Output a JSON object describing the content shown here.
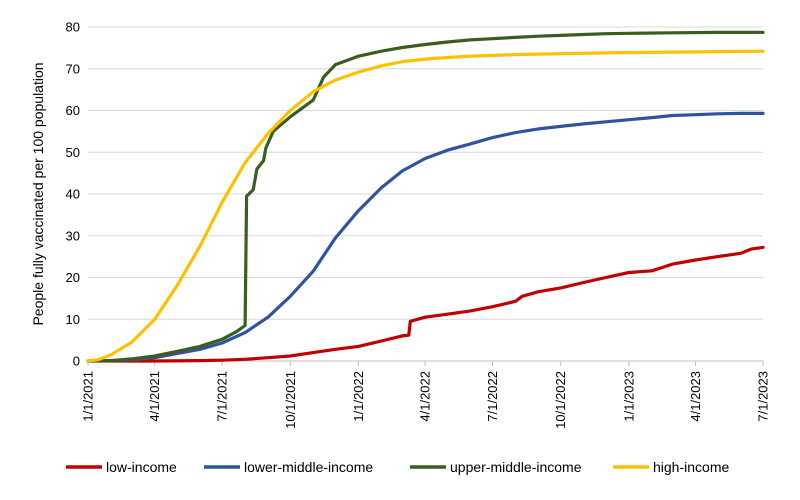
{
  "chart_data": {
    "type": "line",
    "title": "",
    "xlabel": "",
    "ylabel": "People fully vaccinated per 100 population",
    "ylim": [
      0,
      80
    ],
    "y_ticks": [
      "0",
      "10",
      "20",
      "30",
      "40",
      "50",
      "60",
      "70",
      "80"
    ],
    "y_tick_values": [
      0,
      10,
      20,
      30,
      40,
      50,
      60,
      70,
      80
    ],
    "x_ticks": [
      "1/1/2021",
      "4/1/2021",
      "7/1/2021",
      "10/1/2021",
      "1/1/2022",
      "4/1/2022",
      "7/1/2022",
      "10/1/2022",
      "1/1/2023",
      "4/1/2023",
      "7/1/2023"
    ],
    "x_range": [
      "1/1/2021",
      "7/1/2023"
    ],
    "grid": "horizontal",
    "legend_position": "bottom",
    "series": [
      {
        "name": "low-income",
        "color": "#c00000",
        "points": [
          [
            "1/1/2021",
            0
          ],
          [
            "4/1/2021",
            0
          ],
          [
            "6/1/2021",
            0.1
          ],
          [
            "7/1/2021",
            0.2
          ],
          [
            "8/1/2021",
            0.4
          ],
          [
            "9/1/2021",
            0.8
          ],
          [
            "10/1/2021",
            1.2
          ],
          [
            "11/1/2021",
            2
          ],
          [
            "12/1/2021",
            2.8
          ],
          [
            "1/1/2022",
            3.5
          ],
          [
            "2/1/2022",
            4.8
          ],
          [
            "3/1/2022",
            6
          ],
          [
            "3/10/2022",
            6.2
          ],
          [
            "3/12/2022",
            9.5
          ],
          [
            "4/1/2022",
            10.5
          ],
          [
            "5/1/2022",
            11.2
          ],
          [
            "6/1/2022",
            12
          ],
          [
            "7/1/2022",
            13
          ],
          [
            "8/1/2022",
            14.3
          ],
          [
            "8/10/2022",
            15.5
          ],
          [
            "9/1/2022",
            16.6
          ],
          [
            "10/1/2022",
            17.5
          ],
          [
            "11/1/2022",
            18.8
          ],
          [
            "12/1/2022",
            20
          ],
          [
            "1/1/2023",
            21.2
          ],
          [
            "2/1/2023",
            21.6
          ],
          [
            "3/1/2023",
            23.2
          ],
          [
            "4/1/2023",
            24.2
          ],
          [
            "5/1/2023",
            25
          ],
          [
            "6/1/2023",
            25.8
          ],
          [
            "6/15/2023",
            26.8
          ],
          [
            "7/1/2023",
            27.2
          ]
        ]
      },
      {
        "name": "lower-middle-income",
        "color": "#2e54a1",
        "points": [
          [
            "1/1/2021",
            0
          ],
          [
            "2/1/2021",
            0.1
          ],
          [
            "3/1/2021",
            0.3
          ],
          [
            "4/1/2021",
            0.8
          ],
          [
            "5/1/2021",
            1.8
          ],
          [
            "6/1/2021",
            2.8
          ],
          [
            "7/1/2021",
            4.3
          ],
          [
            "8/1/2021",
            6.8
          ],
          [
            "9/1/2021",
            10.5
          ],
          [
            "10/1/2021",
            15.5
          ],
          [
            "11/1/2021",
            21.5
          ],
          [
            "12/1/2021",
            29.5
          ],
          [
            "1/1/2022",
            36
          ],
          [
            "2/1/2022",
            41.5
          ],
          [
            "3/1/2022",
            45.5
          ],
          [
            "4/1/2022",
            48.5
          ],
          [
            "5/1/2022",
            50.5
          ],
          [
            "6/1/2022",
            52
          ],
          [
            "7/1/2022",
            53.5
          ],
          [
            "8/1/2022",
            54.7
          ],
          [
            "9/1/2022",
            55.6
          ],
          [
            "10/1/2022",
            56.2
          ],
          [
            "11/1/2022",
            56.8
          ],
          [
            "12/1/2022",
            57.3
          ],
          [
            "1/1/2023",
            57.8
          ],
          [
            "2/1/2023",
            58.3
          ],
          [
            "3/1/2023",
            58.8
          ],
          [
            "4/1/2023",
            59
          ],
          [
            "5/1/2023",
            59.2
          ],
          [
            "6/1/2023",
            59.3
          ],
          [
            "7/1/2023",
            59.3
          ]
        ]
      },
      {
        "name": "upper-middle-income",
        "color": "#3a5e1f",
        "points": [
          [
            "1/1/2021",
            0
          ],
          [
            "2/1/2021",
            0.1
          ],
          [
            "3/1/2021",
            0.5
          ],
          [
            "4/1/2021",
            1.2
          ],
          [
            "5/1/2021",
            2.3
          ],
          [
            "6/1/2021",
            3.5
          ],
          [
            "7/1/2021",
            5.2
          ],
          [
            "7/20/2021",
            7
          ],
          [
            "8/1/2021",
            8.5
          ],
          [
            "8/3/2021",
            39.5
          ],
          [
            "8/12/2021",
            41
          ],
          [
            "8/17/2021",
            46
          ],
          [
            "8/26/2021",
            48
          ],
          [
            "8/29/2021",
            51
          ],
          [
            "9/8/2021",
            55
          ],
          [
            "10/1/2021",
            58.5
          ],
          [
            "11/1/2021",
            62.5
          ],
          [
            "11/15/2021",
            68
          ],
          [
            "12/1/2021",
            71
          ],
          [
            "1/1/2022",
            73
          ],
          [
            "2/1/2022",
            74.2
          ],
          [
            "3/1/2022",
            75.1
          ],
          [
            "4/1/2022",
            75.8
          ],
          [
            "5/1/2022",
            76.4
          ],
          [
            "6/1/2022",
            76.9
          ],
          [
            "7/1/2022",
            77.2
          ],
          [
            "8/1/2022",
            77.5
          ],
          [
            "9/1/2022",
            77.8
          ],
          [
            "10/1/2022",
            78
          ],
          [
            "11/1/2022",
            78.2
          ],
          [
            "12/1/2022",
            78.4
          ],
          [
            "1/1/2023",
            78.5
          ],
          [
            "3/1/2023",
            78.6
          ],
          [
            "5/1/2023",
            78.7
          ],
          [
            "7/1/2023",
            78.7
          ]
        ]
      },
      {
        "name": "high-income",
        "color": "#ffc000",
        "points": [
          [
            "1/1/2021",
            0
          ],
          [
            "1/15/2021",
            0.3
          ],
          [
            "2/1/2021",
            1.5
          ],
          [
            "3/1/2021",
            4.5
          ],
          [
            "4/1/2021",
            10
          ],
          [
            "5/1/2021",
            18
          ],
          [
            "6/1/2021",
            27.5
          ],
          [
            "7/1/2021",
            38
          ],
          [
            "8/1/2021",
            47.5
          ],
          [
            "9/1/2021",
            54.5
          ],
          [
            "10/1/2021",
            60
          ],
          [
            "11/1/2021",
            64.5
          ],
          [
            "12/1/2021",
            67.3
          ],
          [
            "1/1/2022",
            69.2
          ],
          [
            "2/1/2022",
            70.7
          ],
          [
            "3/1/2022",
            71.7
          ],
          [
            "4/1/2022",
            72.3
          ],
          [
            "5/1/2022",
            72.7
          ],
          [
            "6/1/2022",
            73
          ],
          [
            "7/1/2022",
            73.2
          ],
          [
            "8/1/2022",
            73.4
          ],
          [
            "9/1/2022",
            73.5
          ],
          [
            "10/1/2022",
            73.6
          ],
          [
            "11/1/2022",
            73.7
          ],
          [
            "12/1/2022",
            73.8
          ],
          [
            "1/1/2023",
            73.9
          ],
          [
            "3/1/2023",
            74
          ],
          [
            "5/1/2023",
            74.1
          ],
          [
            "7/1/2023",
            74.2
          ]
        ]
      }
    ]
  }
}
